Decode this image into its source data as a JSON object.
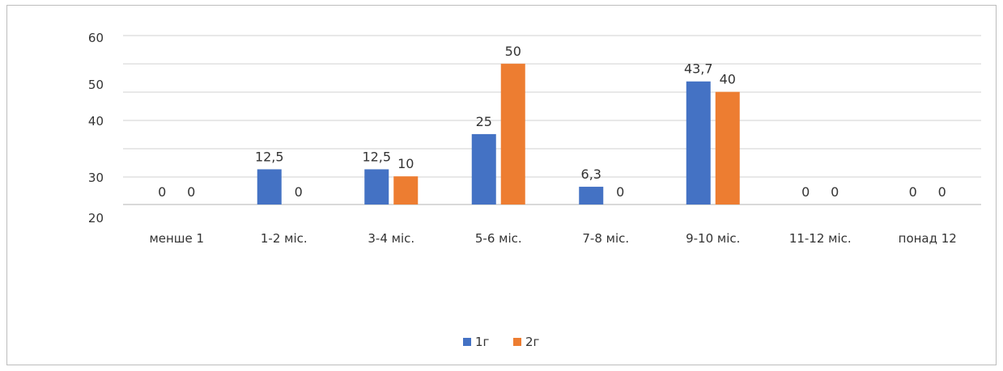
{
  "chart_data": {
    "type": "bar",
    "categories": [
      "менше 1",
      "1-2 міс.",
      "3-4 міс.",
      "5-6 міс.",
      "7-8 міс.",
      "9-10 міс.",
      "11-12 міс.",
      "понад 12"
    ],
    "series": [
      {
        "name": "1г",
        "color": "#4472C4",
        "values": [
          0,
          12.5,
          12.5,
          25,
          6.3,
          43.7,
          0,
          0
        ],
        "labels": [
          "0",
          "12,5",
          "12,5",
          "25",
          "6,3",
          "43,7",
          "0",
          "0"
        ]
      },
      {
        "name": "2г",
        "color": "#ED7D31",
        "values": [
          0,
          0,
          10,
          50,
          0,
          40,
          0,
          0
        ],
        "labels": [
          "0",
          "0",
          "10",
          "50",
          "0",
          "40",
          "0",
          "0"
        ]
      }
    ],
    "y_tick_labels": [
      "20",
      "30",
      "40",
      "50",
      "60"
    ],
    "ylim": [
      0,
      60
    ],
    "grid": true,
    "legend_position": "bottom"
  }
}
